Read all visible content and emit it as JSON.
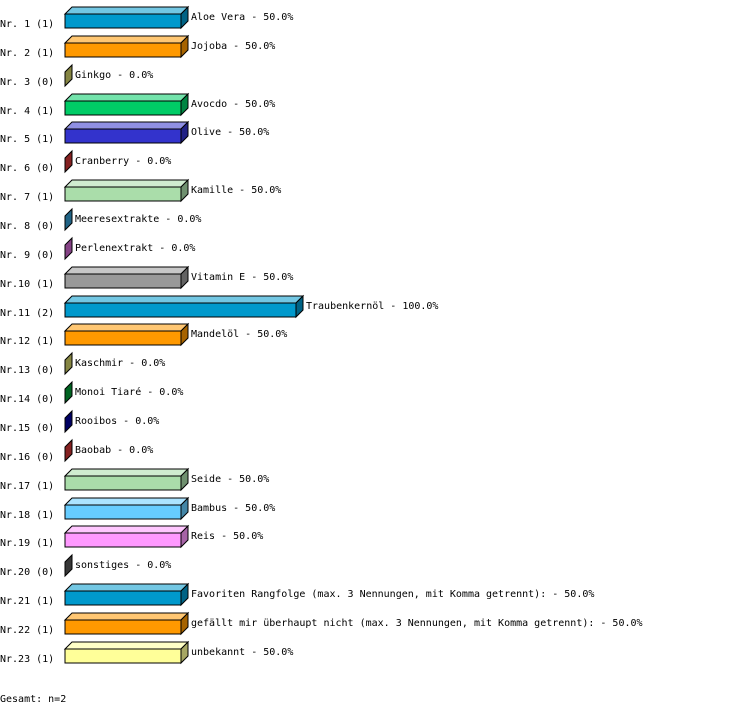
{
  "chart_data": {
    "type": "bar",
    "orientation": "horizontal",
    "style": "3d",
    "xlim": [
      0,
      100
    ],
    "unit": "%",
    "rows": [
      {
        "label": "Nr. 1",
        "count": "(1)",
        "name": "Aloe Vera",
        "value": 50.0,
        "color": "#0099cc"
      },
      {
        "label": "Nr. 2",
        "count": "(1)",
        "name": "Jojoba",
        "value": 50.0,
        "color": "#ff9900"
      },
      {
        "label": "Nr. 3",
        "count": "(0)",
        "name": "Ginkgo",
        "value": 0.0,
        "color": "#cccc66"
      },
      {
        "label": "Nr. 4",
        "count": "(1)",
        "name": "Avocdo",
        "value": 50.0,
        "color": "#00cc66"
      },
      {
        "label": "Nr. 5",
        "count": "(1)",
        "name": "Olive",
        "value": 50.0,
        "color": "#3333cc"
      },
      {
        "label": "Nr. 6",
        "count": "(0)",
        "name": "Cranberry",
        "value": 0.0,
        "color": "#cc3333"
      },
      {
        "label": "Nr. 7",
        "count": "(1)",
        "name": "Kamille",
        "value": 50.0,
        "color": "#aaddaa"
      },
      {
        "label": "Nr. 8",
        "count": "(0)",
        "name": "Meeresextrakte",
        "value": 0.0,
        "color": "#3399cc"
      },
      {
        "label": "Nr. 9",
        "count": "(0)",
        "name": "Perlenextrakt",
        "value": 0.0,
        "color": "#cc66cc"
      },
      {
        "label": "Nr.10",
        "count": "(1)",
        "name": "Vitamin E",
        "value": 50.0,
        "color": "#999999"
      },
      {
        "label": "Nr.11",
        "count": "(2)",
        "name": "Traubenkernöl",
        "value": 100.0,
        "color": "#0099cc"
      },
      {
        "label": "Nr.12",
        "count": "(1)",
        "name": "Mandelöl",
        "value": 50.0,
        "color": "#ff9900"
      },
      {
        "label": "Nr.13",
        "count": "(0)",
        "name": "Kaschmir",
        "value": 0.0,
        "color": "#cccc66"
      },
      {
        "label": "Nr.14",
        "count": "(0)",
        "name": "Monoi Tiaré",
        "value": 0.0,
        "color": "#009933"
      },
      {
        "label": "Nr.15",
        "count": "(0)",
        "name": "Rooibos",
        "value": 0.0,
        "color": "#000099"
      },
      {
        "label": "Nr.16",
        "count": "(0)",
        "name": "Baobab",
        "value": 0.0,
        "color": "#cc3333"
      },
      {
        "label": "Nr.17",
        "count": "(1)",
        "name": "Seide",
        "value": 50.0,
        "color": "#aaddaa"
      },
      {
        "label": "Nr.18",
        "count": "(1)",
        "name": "Bambus",
        "value": 50.0,
        "color": "#66ccff"
      },
      {
        "label": "Nr.19",
        "count": "(1)",
        "name": "Reis",
        "value": 50.0,
        "color": "#ff99ff"
      },
      {
        "label": "Nr.20",
        "count": "(0)",
        "name": "sonstiges",
        "value": 0.0,
        "color": "#555555"
      },
      {
        "label": "Nr.21",
        "count": "(1)",
        "name": "Favoriten Rangfolge (max. 3 Nennungen, mit Komma getrennt):",
        "value": 50.0,
        "color": "#0099cc"
      },
      {
        "label": "Nr.22",
        "count": "(1)",
        "name": "gefällt mir überhaupt nicht (max. 3 Nennungen, mit Komma getrennt):",
        "value": 50.0,
        "color": "#ff9900"
      },
      {
        "label": "Nr.23",
        "count": "(1)",
        "name": "unbekannt",
        "value": 50.0,
        "color": "#ffff99"
      }
    ],
    "footer": "Gesamt: n=2"
  }
}
